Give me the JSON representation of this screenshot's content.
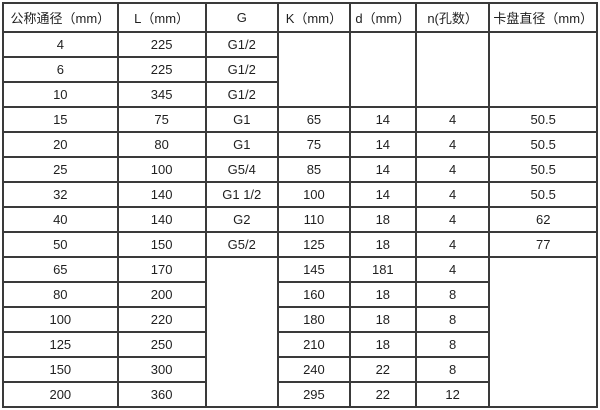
{
  "table": {
    "title": "flowmeter-dimension-spec-table",
    "colors": {
      "border": "#3a3a3a",
      "text": "#1f1f1f",
      "background": "#ffffff"
    },
    "col_widths_pct": [
      19.3,
      14.8,
      12.2,
      12.1,
      11.1,
      12.4,
      18.1
    ],
    "headers": [
      "公称通径（mm）",
      "L（mm）",
      "G",
      "K（mm）",
      "d（mm）",
      "n(孔数）",
      "卡盘直径（mm）"
    ],
    "rows": [
      {
        "cells": [
          {
            "t": "4"
          },
          {
            "t": "225"
          },
          {
            "t": "G1/2"
          },
          {
            "t": "",
            "rs": 3
          },
          {
            "t": "",
            "rs": 3
          },
          {
            "t": "",
            "rs": 3
          },
          {
            "t": "",
            "rs": 3
          }
        ]
      },
      {
        "cells": [
          {
            "t": "6"
          },
          {
            "t": "225"
          },
          {
            "t": "G1/2"
          }
        ]
      },
      {
        "cells": [
          {
            "t": "10"
          },
          {
            "t": "345"
          },
          {
            "t": "G1/2"
          }
        ]
      },
      {
        "cells": [
          {
            "t": "15"
          },
          {
            "t": "75"
          },
          {
            "t": "G1"
          },
          {
            "t": "65"
          },
          {
            "t": "14"
          },
          {
            "t": "4"
          },
          {
            "t": "50.5"
          }
        ]
      },
      {
        "cells": [
          {
            "t": "20"
          },
          {
            "t": "80"
          },
          {
            "t": "G1"
          },
          {
            "t": "75"
          },
          {
            "t": "14"
          },
          {
            "t": "4"
          },
          {
            "t": "50.5"
          }
        ]
      },
      {
        "cells": [
          {
            "t": "25"
          },
          {
            "t": "100"
          },
          {
            "t": "G5/4"
          },
          {
            "t": "85"
          },
          {
            "t": "14"
          },
          {
            "t": "4"
          },
          {
            "t": "50.5"
          }
        ]
      },
      {
        "cells": [
          {
            "t": "32"
          },
          {
            "t": "140"
          },
          {
            "t": "G1 1/2"
          },
          {
            "t": "100"
          },
          {
            "t": "14"
          },
          {
            "t": "4"
          },
          {
            "t": "50.5"
          }
        ]
      },
      {
        "cells": [
          {
            "t": "40"
          },
          {
            "t": "140"
          },
          {
            "t": "G2"
          },
          {
            "t": "110"
          },
          {
            "t": "18"
          },
          {
            "t": "4"
          },
          {
            "t": "62"
          }
        ]
      },
      {
        "cells": [
          {
            "t": "50"
          },
          {
            "t": "150"
          },
          {
            "t": "G5/2"
          },
          {
            "t": "125"
          },
          {
            "t": "18"
          },
          {
            "t": "4"
          },
          {
            "t": "77"
          }
        ]
      },
      {
        "cells": [
          {
            "t": "65"
          },
          {
            "t": "170"
          },
          {
            "t": "",
            "rs": 6
          },
          {
            "t": "145"
          },
          {
            "t": "181"
          },
          {
            "t": "4"
          },
          {
            "t": "",
            "rs": 6
          }
        ]
      },
      {
        "cells": [
          {
            "t": "80"
          },
          {
            "t": "200"
          },
          {
            "t": "160"
          },
          {
            "t": "18"
          },
          {
            "t": "8"
          }
        ]
      },
      {
        "cells": [
          {
            "t": "100"
          },
          {
            "t": "220"
          },
          {
            "t": "180"
          },
          {
            "t": "18"
          },
          {
            "t": "8"
          }
        ]
      },
      {
        "cells": [
          {
            "t": "125"
          },
          {
            "t": "250"
          },
          {
            "t": "210"
          },
          {
            "t": "18"
          },
          {
            "t": "8"
          }
        ]
      },
      {
        "cells": [
          {
            "t": "150"
          },
          {
            "t": "300"
          },
          {
            "t": "240"
          },
          {
            "t": "22"
          },
          {
            "t": "8"
          }
        ]
      },
      {
        "cells": [
          {
            "t": "200"
          },
          {
            "t": "360"
          },
          {
            "t": "295"
          },
          {
            "t": "22"
          },
          {
            "t": "12"
          }
        ]
      }
    ]
  }
}
